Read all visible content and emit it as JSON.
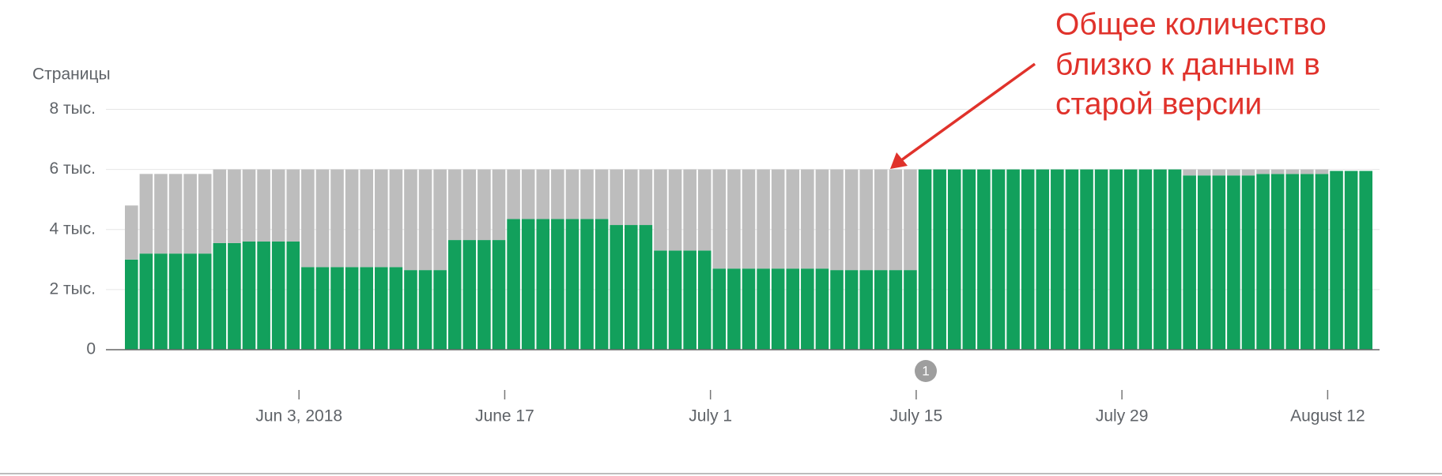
{
  "chart_data": {
    "type": "stacked_bar",
    "y_axis_title": "Страницы",
    "annotation": [
      "Общее количество",
      "близко к данным в",
      "старой версии"
    ],
    "event_marker": "1",
    "categories": [
      null,
      null,
      null,
      null,
      null,
      null,
      null,
      null,
      null,
      null,
      null,
      "Jun 3, 2018",
      null,
      null,
      null,
      null,
      null,
      null,
      null,
      null,
      null,
      null,
      null,
      null,
      null,
      "June 17",
      null,
      null,
      null,
      null,
      null,
      null,
      null,
      null,
      null,
      null,
      null,
      null,
      null,
      "July 1",
      null,
      null,
      null,
      null,
      null,
      null,
      null,
      null,
      null,
      null,
      null,
      null,
      null,
      "July 15",
      null,
      null,
      null,
      null,
      null,
      null,
      null,
      null,
      null,
      null,
      null,
      null,
      null,
      "July 29",
      null,
      null,
      null,
      null,
      null,
      null,
      null,
      null,
      null,
      null,
      null,
      null,
      null,
      "August 12",
      null,
      null,
      null
    ],
    "series": [
      {
        "color": "#12a05c",
        "values": [
          3000,
          3200,
          3200,
          3200,
          3200,
          3200,
          3550,
          3550,
          3600,
          3600,
          3600,
          3600,
          2750,
          2750,
          2750,
          2750,
          2750,
          2750,
          2750,
          2650,
          2650,
          2650,
          3650,
          3650,
          3650,
          3650,
          4350,
          4350,
          4350,
          4350,
          4350,
          4350,
          4350,
          4150,
          4150,
          4150,
          3300,
          3300,
          3300,
          3300,
          2700,
          2700,
          2700,
          2700,
          2700,
          2700,
          2700,
          2700,
          2650,
          2650,
          2650,
          2650,
          2650,
          2650,
          6000,
          6000,
          6000,
          6000,
          6000,
          6000,
          6000,
          6000,
          6000,
          6000,
          6000,
          6000,
          6000,
          6000,
          6000,
          6000,
          6000,
          6000,
          5800,
          5800,
          5800,
          5800,
          5800,
          5850,
          5850,
          5850,
          5850,
          5850,
          5950,
          5950,
          5950
        ]
      },
      {
        "color": "#bdbdbd",
        "values": [
          1800,
          2650,
          2650,
          2650,
          2650,
          2650,
          2450,
          2450,
          2400,
          2400,
          2400,
          2400,
          3250,
          3250,
          3250,
          3250,
          3250,
          3250,
          3250,
          3350,
          3350,
          3350,
          2350,
          2350,
          2350,
          2350,
          1650,
          1650,
          1650,
          1650,
          1650,
          1650,
          1650,
          1850,
          1850,
          1850,
          2700,
          2700,
          2700,
          2700,
          3300,
          3300,
          3300,
          3300,
          3300,
          3300,
          3300,
          3300,
          3350,
          3350,
          3350,
          3350,
          3350,
          3350,
          0,
          0,
          0,
          0,
          0,
          0,
          0,
          0,
          0,
          0,
          0,
          0,
          0,
          0,
          0,
          0,
          0,
          0,
          200,
          200,
          200,
          200,
          200,
          150,
          150,
          150,
          150,
          150,
          0,
          0,
          0
        ]
      }
    ],
    "ylim": [
      0,
      8000
    ],
    "yticks": [
      0,
      {
        "value": 2000,
        "label": "2 тыс."
      },
      {
        "value": 4000,
        "label": "4 тыс."
      },
      {
        "value": 6000,
        "label": "6 тыс."
      },
      {
        "value": 8000,
        "label": "8 тыс."
      }
    ],
    "grid": true
  }
}
